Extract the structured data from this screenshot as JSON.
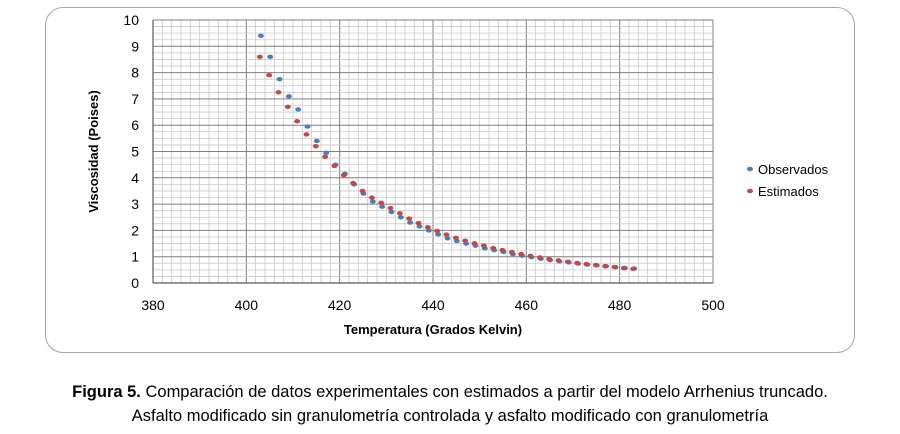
{
  "caption": {
    "figure_label": "Figura 5.",
    "line1": " Comparación de datos experimentales con estimados a partir del modelo Arrhenius truncado.",
    "line2": "Asfalto modificado sin granulometría controlada y asfalto modificado con granulometría"
  },
  "chart_data": {
    "type": "scatter",
    "xlabel": "Temperatura (Grados Kelvin)",
    "ylabel": "Viscosidad (Poises)",
    "xlim": [
      380,
      500
    ],
    "ylim": [
      0,
      10
    ],
    "xticks": [
      "380",
      "400",
      "420",
      "440",
      "460",
      "480",
      "500"
    ],
    "yticks": [
      "0",
      "1",
      "2",
      "3",
      "4",
      "5",
      "6",
      "7",
      "8",
      "9",
      "10"
    ],
    "grid": true,
    "legend_position": "right",
    "series": [
      {
        "name": "Observados",
        "color": "#4a7ebb",
        "x": [
          403,
          405,
          407,
          409,
          411,
          413,
          415,
          417,
          419,
          421,
          423,
          425,
          427,
          429,
          431,
          433,
          435,
          437,
          439,
          441,
          443,
          445,
          447,
          449,
          451,
          453,
          455,
          457,
          459,
          461,
          463,
          465,
          467,
          469,
          471,
          473,
          475,
          477,
          479,
          481,
          483
        ],
        "y": [
          9.4,
          8.6,
          7.75,
          7.1,
          6.6,
          5.95,
          5.4,
          4.95,
          4.5,
          4.15,
          3.75,
          3.4,
          3.1,
          2.9,
          2.7,
          2.5,
          2.3,
          2.15,
          2.0,
          1.85,
          1.7,
          1.6,
          1.5,
          1.42,
          1.32,
          1.25,
          1.18,
          1.1,
          1.04,
          0.98,
          0.92,
          0.87,
          0.82,
          0.78,
          0.74,
          0.7,
          0.67,
          0.64,
          0.6,
          0.57,
          0.55
        ]
      },
      {
        "name": "Estimados",
        "color": "#be4b48",
        "x": [
          403,
          405,
          407,
          409,
          411,
          413,
          415,
          417,
          419,
          421,
          423,
          425,
          427,
          429,
          431,
          433,
          435,
          437,
          439,
          441,
          443,
          445,
          447,
          449,
          451,
          453,
          455,
          457,
          459,
          461,
          463,
          465,
          467,
          469,
          471,
          473,
          475,
          477,
          479,
          481,
          483
        ],
        "y": [
          8.6,
          7.9,
          7.25,
          6.7,
          6.15,
          5.65,
          5.2,
          4.8,
          4.45,
          4.1,
          3.8,
          3.5,
          3.25,
          3.05,
          2.85,
          2.65,
          2.45,
          2.28,
          2.12,
          1.98,
          1.84,
          1.72,
          1.61,
          1.51,
          1.42,
          1.33,
          1.25,
          1.17,
          1.1,
          1.03,
          0.97,
          0.91,
          0.86,
          0.81,
          0.76,
          0.72,
          0.68,
          0.64,
          0.61,
          0.57,
          0.54
        ]
      }
    ]
  }
}
